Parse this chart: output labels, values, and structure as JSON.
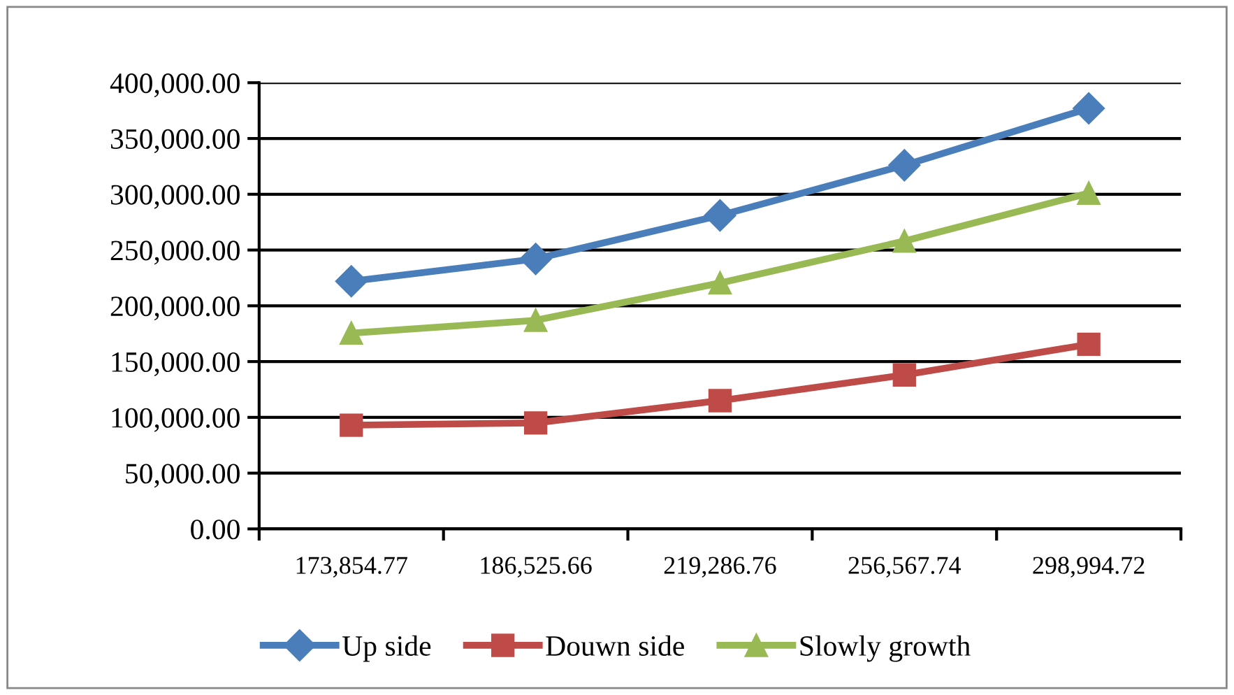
{
  "chart_data": {
    "type": "line",
    "categories": [
      "173,854.77",
      "186,525.66",
      "219,286.76",
      "256,567.74",
      "298,994.72"
    ],
    "series": [
      {
        "name": "Up side",
        "color": "#4a7ebb",
        "marker": "diamond",
        "values": [
          222000,
          242000,
          281000,
          326000,
          377000
        ]
      },
      {
        "name": "Douwn side",
        "color": "#be4b48",
        "marker": "square",
        "values": [
          93000,
          95000,
          115000,
          138000,
          165500
        ]
      },
      {
        "name": "Slowly growth",
        "color": "#98b954",
        "marker": "triangle",
        "values": [
          175500,
          187000,
          220500,
          258000,
          301000
        ]
      }
    ],
    "ylim": [
      0,
      400000
    ],
    "yticks": [
      {
        "value": 0,
        "label": "0.00"
      },
      {
        "value": 50000,
        "label": "50,000.00"
      },
      {
        "value": 100000,
        "label": "100,000.00"
      },
      {
        "value": 150000,
        "label": "150,000.00"
      },
      {
        "value": 200000,
        "label": "200,000.00"
      },
      {
        "value": 250000,
        "label": "250,000.00"
      },
      {
        "value": 300000,
        "label": "300,000.00"
      },
      {
        "value": 350000,
        "label": "350,000.00"
      },
      {
        "value": 400000,
        "label": "400,000.00"
      }
    ],
    "grid": "y",
    "legend": "bottom",
    "line_style": "solid"
  }
}
